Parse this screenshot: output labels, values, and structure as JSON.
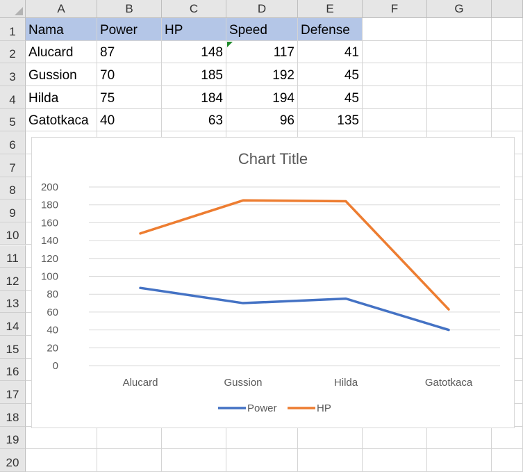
{
  "columns": [
    "A",
    "B",
    "C",
    "D",
    "E",
    "F",
    "G"
  ],
  "rows": [
    "1",
    "2",
    "3",
    "4",
    "5",
    "6",
    "7",
    "8",
    "9",
    "10",
    "11",
    "12",
    "13",
    "14",
    "15",
    "16",
    "17",
    "18",
    "19",
    "20"
  ],
  "table": {
    "headers": [
      "Nama",
      "Power",
      "HP",
      "Speed",
      "Defense"
    ],
    "rows": [
      [
        "Alucard",
        "87",
        "148",
        "117",
        "41"
      ],
      [
        "Gussion",
        "70",
        "185",
        "192",
        "45"
      ],
      [
        "Hilda",
        "75",
        "184",
        "194",
        "45"
      ],
      [
        "Gatotkaca",
        "40",
        "63",
        "96",
        "135"
      ]
    ]
  },
  "colors": {
    "header_fill": "#b4c6e7",
    "comment_indicator": "#1e8a2a",
    "power_line": "#4472c4",
    "hp_line": "#ed7d31"
  },
  "chart_data": {
    "type": "line",
    "title": "Chart Title",
    "categories": [
      "Alucard",
      "Gussion",
      "Hilda",
      "Gatotkaca"
    ],
    "series": [
      {
        "name": "Power",
        "values": [
          87,
          70,
          75,
          40
        ],
        "color": "#4472c4"
      },
      {
        "name": "HP",
        "values": [
          148,
          185,
          184,
          63
        ],
        "color": "#ed7d31"
      }
    ],
    "ylim": [
      0,
      200
    ],
    "yticks": [
      "0",
      "20",
      "40",
      "60",
      "80",
      "100",
      "120",
      "140",
      "160",
      "180",
      "200"
    ],
    "grid": true,
    "legend": "bottom"
  }
}
